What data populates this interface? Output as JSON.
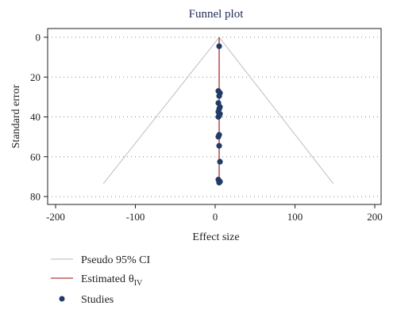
{
  "chart_data": {
    "type": "scatter",
    "title": "Funnel plot",
    "xlabel": "Effect size",
    "ylabel": "Standard error",
    "xlim": [
      -210,
      210
    ],
    "ylim": [
      0,
      82
    ],
    "y_reversed": true,
    "xticks": [
      -200,
      -100,
      0,
      100,
      200
    ],
    "xtick_labels": [
      "-200",
      "-100",
      "0",
      "100",
      "200"
    ],
    "yticks": [
      0,
      20,
      40,
      60,
      80
    ],
    "ytick_labels": [
      "0",
      "20",
      "40",
      "60",
      "80"
    ],
    "grid": "horizontal-dotted",
    "estimate": 5,
    "ci_lines": [
      {
        "from": [
          5,
          0
        ],
        "to": [
          -140,
          73.5
        ]
      },
      {
        "from": [
          5,
          0
        ],
        "to": [
          148,
          73.5
        ]
      }
    ],
    "estimate_line": {
      "x": 5,
      "y_from": 0,
      "y_to": 73.5
    },
    "series": [
      {
        "name": "Studies",
        "points": [
          {
            "x": 5,
            "y": 4.5
          },
          {
            "x": 4,
            "y": 27
          },
          {
            "x": 6,
            "y": 28
          },
          {
            "x": 5,
            "y": 29.5
          },
          {
            "x": 4,
            "y": 33
          },
          {
            "x": 6,
            "y": 35
          },
          {
            "x": 5,
            "y": 36
          },
          {
            "x": 4,
            "y": 37.5
          },
          {
            "x": 6,
            "y": 38.5
          },
          {
            "x": 5,
            "y": 39.5
          },
          {
            "x": 4,
            "y": 40
          },
          {
            "x": 5,
            "y": 49
          },
          {
            "x": 4,
            "y": 50
          },
          {
            "x": 5,
            "y": 54.5
          },
          {
            "x": 6,
            "y": 62.5
          },
          {
            "x": 4,
            "y": 71.5
          },
          {
            "x": 6,
            "y": 72.5
          },
          {
            "x": 5,
            "y": 73
          }
        ]
      }
    ],
    "legend": {
      "placement": "bottom-left",
      "items": [
        {
          "label": "Pseudo 95% CI",
          "kind": "line",
          "color": "#c8c8c8"
        },
        {
          "label": "Estimated",
          "subscript_symbol": "θ",
          "subscript": "IV",
          "kind": "line",
          "color": "#b03a3a"
        },
        {
          "label": "Studies",
          "kind": "marker",
          "color": "#1f3b66"
        }
      ]
    },
    "colors": {
      "points": "#1f3b66",
      "estimate_line": "#b03a3a",
      "ci_lines": "#c8c8c8",
      "axis": "#222222",
      "grid": "#888888",
      "title": "#1f2a5a"
    }
  }
}
